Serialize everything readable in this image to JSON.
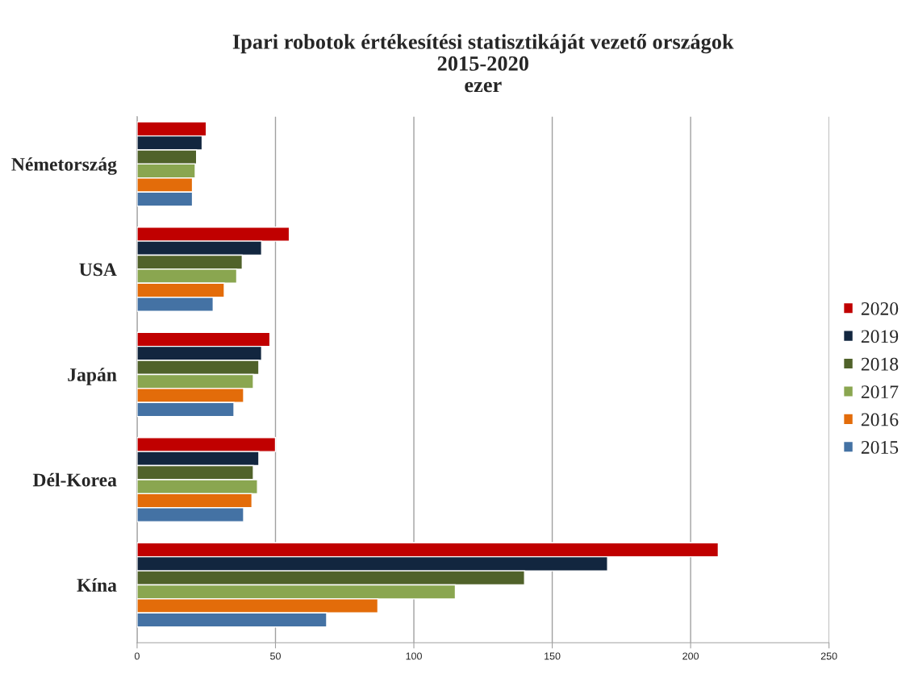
{
  "chart_data": {
    "type": "bar",
    "orientation": "horizontal",
    "title": "Ipari robotok értékesítési statisztikáját vezető országok\n2015-2020\nezer",
    "categories": [
      "Németország",
      "USA",
      "Japán",
      "Dél-Korea",
      "Kína"
    ],
    "series": [
      {
        "name": "2020",
        "color": "#c00000",
        "values": [
          25,
          55,
          48,
          50,
          210
        ]
      },
      {
        "name": "2019",
        "color": "#12263f",
        "values": [
          23.5,
          45,
          45,
          44,
          170
        ]
      },
      {
        "name": "2018",
        "color": "#50622a",
        "values": [
          21.5,
          38,
          44,
          42,
          140
        ]
      },
      {
        "name": "2017",
        "color": "#8aa650",
        "values": [
          21,
          36,
          42,
          43.5,
          115
        ]
      },
      {
        "name": "2016",
        "color": "#e36c0a",
        "values": [
          20,
          31.5,
          38.5,
          41.5,
          87
        ]
      },
      {
        "name": "2015",
        "color": "#4472a4",
        "values": [
          20,
          27.5,
          35,
          38.5,
          68.5
        ]
      }
    ],
    "xlim": [
      0,
      250
    ],
    "xticks": [
      0,
      50,
      100,
      150,
      200,
      250
    ],
    "grid": "x",
    "legend": "right"
  }
}
